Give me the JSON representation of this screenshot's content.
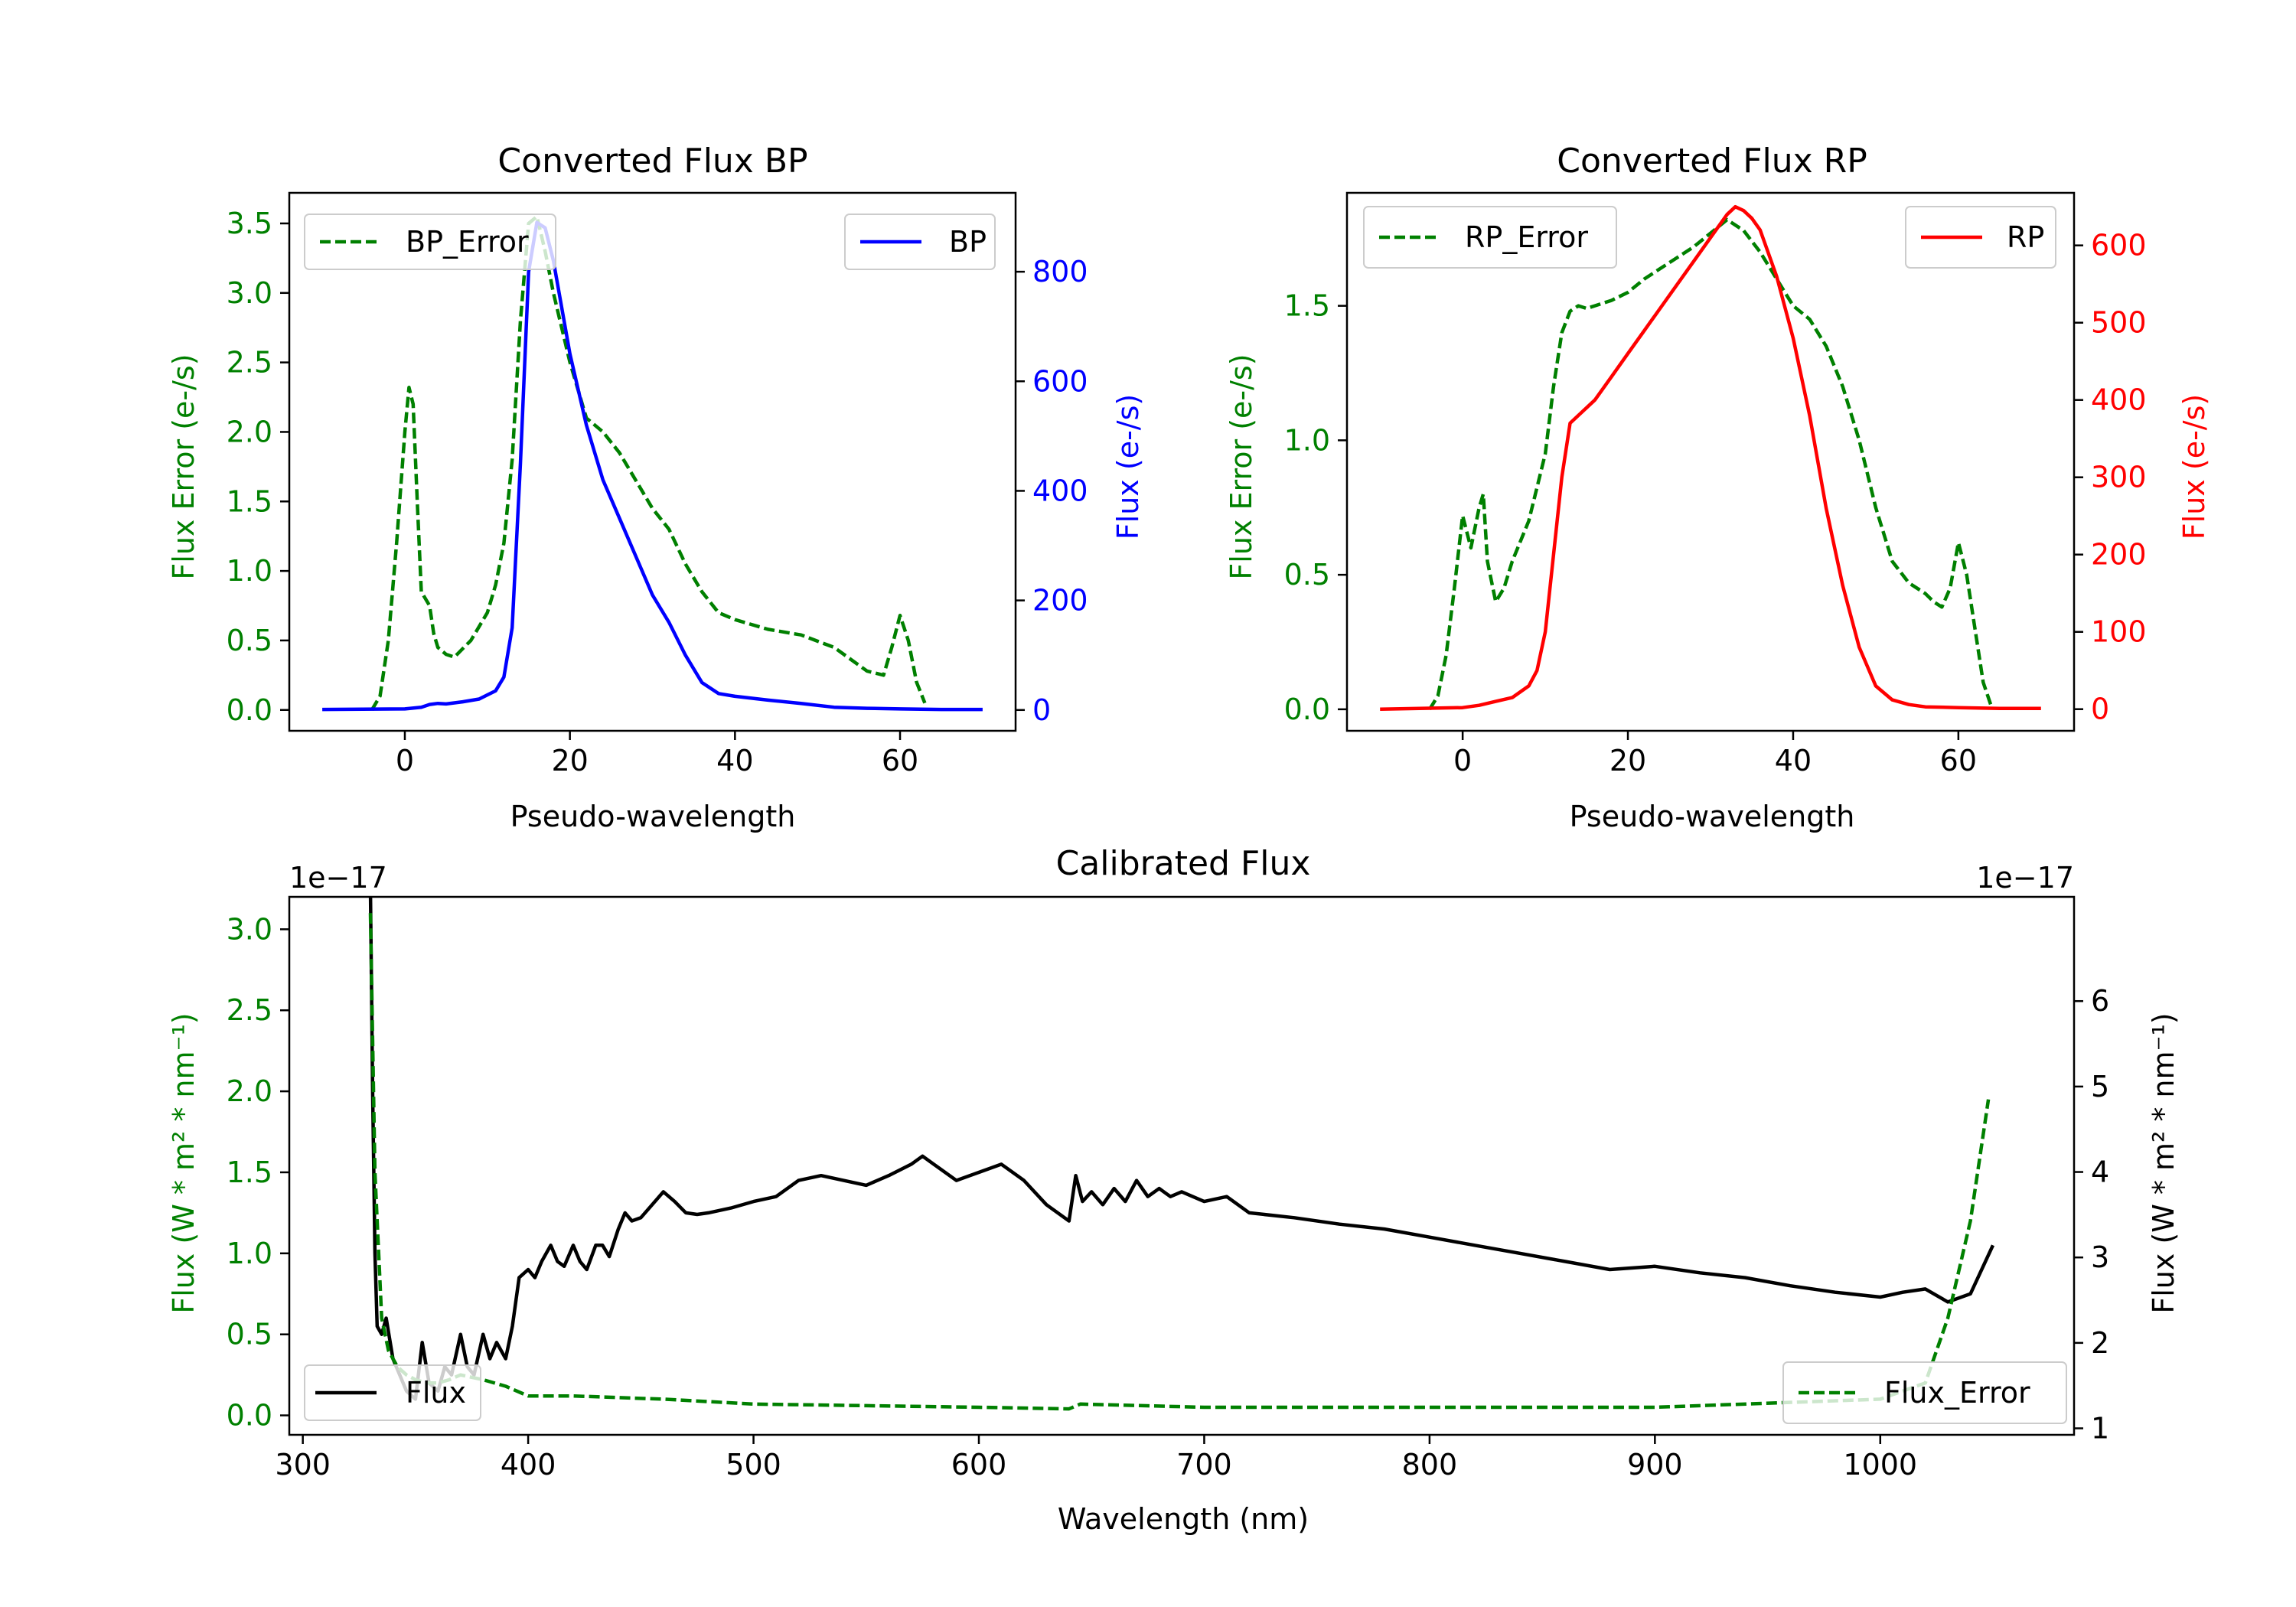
{
  "colors": {
    "green": "#008000",
    "blue": "#0000ff",
    "red": "#ff0000",
    "black": "#000000"
  },
  "chart_data": [
    {
      "id": "bp",
      "type": "line",
      "title": "Converted Flux BP",
      "xlabel": "Pseudo-wavelength",
      "ylabel_left": "Flux Error (e-/s)",
      "ylabel_right": "Flux (e-/s)",
      "xlim": [
        -14,
        74
      ],
      "ylim_left": [
        -0.15,
        3.72
      ],
      "ylim_right": [
        -38,
        944
      ],
      "xticks": [
        0,
        20,
        40,
        60
      ],
      "yticks_left": [
        0.0,
        0.5,
        1.0,
        1.5,
        2.0,
        2.5,
        3.0,
        3.5
      ],
      "yticks_right": [
        0,
        200,
        400,
        600,
        800
      ],
      "legend_left": {
        "label": "BP_Error",
        "position": "upper-left"
      },
      "legend_right": {
        "label": "BP",
        "position": "upper-right"
      },
      "series": [
        {
          "name": "BP_Error",
          "axis": "left",
          "color": "green",
          "style": "dashed",
          "x": [
            -4,
            -3,
            -2,
            -1,
            0,
            0.5,
            1,
            1.5,
            2,
            2.5,
            3,
            3.5,
            4,
            5,
            6,
            8,
            10,
            11,
            12,
            13,
            14,
            15,
            16,
            17,
            18,
            19,
            20,
            22,
            24,
            26,
            28,
            30,
            32,
            34,
            36,
            38,
            40,
            44,
            48,
            52,
            56,
            58,
            59,
            60,
            61,
            62,
            63
          ],
          "y": [
            0.0,
            0.1,
            0.5,
            1.2,
            2.0,
            2.32,
            2.2,
            1.5,
            0.85,
            0.8,
            0.75,
            0.55,
            0.45,
            0.4,
            0.38,
            0.5,
            0.7,
            0.9,
            1.2,
            1.8,
            2.8,
            3.5,
            3.55,
            3.3,
            3.0,
            2.75,
            2.5,
            2.1,
            2.0,
            1.85,
            1.65,
            1.45,
            1.3,
            1.05,
            0.85,
            0.7,
            0.65,
            0.58,
            0.54,
            0.45,
            0.28,
            0.25,
            0.45,
            0.68,
            0.5,
            0.2,
            0.05
          ]
        },
        {
          "name": "BP",
          "axis": "right",
          "color": "blue",
          "style": "solid",
          "x": [
            -10,
            0,
            2,
            3,
            4,
            5,
            7,
            9,
            11,
            12,
            13,
            14,
            15,
            16,
            17,
            18,
            20,
            22,
            24,
            26,
            28,
            30,
            32,
            34,
            36,
            38,
            40,
            44,
            48,
            52,
            56,
            60,
            65,
            70
          ],
          "y": [
            1,
            2,
            5,
            10,
            12,
            11,
            15,
            20,
            35,
            60,
            150,
            450,
            800,
            890,
            880,
            820,
            650,
            520,
            420,
            350,
            280,
            210,
            160,
            100,
            50,
            30,
            25,
            18,
            12,
            5,
            3,
            2,
            1,
            1
          ]
        }
      ]
    },
    {
      "id": "rp",
      "type": "line",
      "title": "Converted Flux RP",
      "xlabel": "Pseudo-wavelength",
      "ylabel_left": "Flux Error (e-/s)",
      "ylabel_right": "Flux (e-/s)",
      "xlim": [
        -14,
        74
      ],
      "ylim_left": [
        -0.08,
        1.92
      ],
      "ylim_right": [
        -28,
        668
      ],
      "xticks": [
        0,
        20,
        40,
        60
      ],
      "yticks_left": [
        0.0,
        0.5,
        1.0,
        1.5
      ],
      "yticks_right": [
        0,
        100,
        200,
        300,
        400,
        500,
        600
      ],
      "legend_left": {
        "label": "RP_Error",
        "position": "upper-left"
      },
      "legend_right": {
        "label": "RP",
        "position": "upper-right"
      },
      "series": [
        {
          "name": "RP_Error",
          "axis": "left",
          "color": "green",
          "style": "dashed",
          "x": [
            -4,
            -3,
            -2,
            -1,
            0,
            1,
            2,
            2.5,
            3,
            4,
            5,
            6,
            8,
            10,
            11,
            12,
            13,
            14,
            15,
            16,
            18,
            20,
            22,
            24,
            26,
            28,
            30,
            32,
            34,
            36,
            38,
            40,
            42,
            44,
            46,
            48,
            50,
            52,
            54,
            55,
            56,
            57,
            58,
            59,
            60,
            61,
            62,
            63,
            64
          ],
          "y": [
            0.0,
            0.05,
            0.2,
            0.45,
            0.72,
            0.6,
            0.75,
            0.8,
            0.55,
            0.4,
            0.45,
            0.55,
            0.7,
            0.95,
            1.2,
            1.4,
            1.48,
            1.5,
            1.49,
            1.5,
            1.52,
            1.55,
            1.6,
            1.64,
            1.68,
            1.72,
            1.77,
            1.82,
            1.78,
            1.7,
            1.6,
            1.5,
            1.45,
            1.35,
            1.2,
            1.0,
            0.75,
            0.55,
            0.47,
            0.45,
            0.43,
            0.4,
            0.38,
            0.45,
            0.62,
            0.5,
            0.3,
            0.1,
            0.01
          ]
        },
        {
          "name": "RP",
          "axis": "right",
          "color": "red",
          "style": "solid",
          "x": [
            -10,
            0,
            2,
            4,
            6,
            8,
            9,
            10,
            11,
            12,
            13,
            14,
            16,
            18,
            20,
            22,
            24,
            26,
            28,
            30,
            31,
            32,
            33,
            34,
            35,
            36,
            38,
            40,
            42,
            44,
            46,
            48,
            50,
            52,
            54,
            56,
            60,
            65,
            70
          ],
          "y": [
            0,
            2,
            5,
            10,
            15,
            30,
            50,
            100,
            200,
            300,
            370,
            380,
            400,
            430,
            460,
            490,
            520,
            550,
            580,
            610,
            625,
            640,
            650,
            645,
            635,
            620,
            560,
            480,
            380,
            260,
            160,
            80,
            30,
            12,
            6,
            3,
            2,
            1,
            1
          ]
        }
      ]
    },
    {
      "id": "cal",
      "type": "line",
      "title": "Calibrated Flux",
      "xlabel": "Wavelength (nm)",
      "ylabel_left": "Flux (W * m² * nm⁻¹)",
      "ylabel_right": "Flux (W * m² * nm⁻¹)",
      "offset_left": "1e−17",
      "offset_right": "1e−17",
      "xlim": [
        294,
        1086
      ],
      "ylim_left": [
        -0.12,
        3.2
      ],
      "ylim_right": [
        0.924,
        7.22
      ],
      "xticks": [
        300,
        400,
        500,
        600,
        700,
        800,
        900,
        1000
      ],
      "yticks_left": [
        0.0,
        0.5,
        1.0,
        1.5,
        2.0,
        2.5,
        3.0
      ],
      "yticks_right": [
        1,
        2,
        3,
        4,
        5,
        6
      ],
      "legend_left": {
        "label": "Flux",
        "position": "lower-left"
      },
      "legend_right": {
        "label": "Flux_Error",
        "position": "lower-right"
      },
      "series": [
        {
          "name": "Flux",
          "axis": "left",
          "color": "black",
          "style": "solid",
          "x": [
            330,
            331,
            332,
            333,
            335,
            337,
            340,
            343,
            346,
            350,
            353,
            356,
            360,
            363,
            366,
            370,
            373,
            376,
            380,
            383,
            386,
            390,
            393,
            396,
            400,
            403,
            406,
            410,
            413,
            416,
            420,
            423,
            426,
            430,
            433,
            436,
            440,
            443,
            446,
            450,
            455,
            460,
            465,
            470,
            475,
            480,
            490,
            500,
            510,
            520,
            530,
            540,
            550,
            560,
            570,
            575,
            580,
            590,
            600,
            610,
            620,
            630,
            640,
            643,
            646,
            650,
            655,
            660,
            665,
            670,
            675,
            680,
            685,
            690,
            700,
            710,
            720,
            740,
            760,
            780,
            800,
            820,
            840,
            860,
            880,
            900,
            920,
            940,
            960,
            980,
            1000,
            1010,
            1020,
            1030,
            1040,
            1050
          ],
          "y": [
            3.25,
            2.0,
            1.0,
            0.55,
            0.5,
            0.6,
            0.35,
            0.25,
            0.15,
            0.1,
            0.45,
            0.2,
            0.15,
            0.3,
            0.25,
            0.5,
            0.3,
            0.25,
            0.5,
            0.35,
            0.45,
            0.35,
            0.55,
            0.85,
            0.9,
            0.85,
            0.95,
            1.05,
            0.95,
            0.92,
            1.05,
            0.95,
            0.9,
            1.05,
            1.05,
            0.98,
            1.15,
            1.25,
            1.2,
            1.22,
            1.3,
            1.38,
            1.32,
            1.25,
            1.24,
            1.25,
            1.28,
            1.32,
            1.35,
            1.45,
            1.48,
            1.45,
            1.42,
            1.48,
            1.55,
            1.6,
            1.55,
            1.45,
            1.5,
            1.55,
            1.45,
            1.3,
            1.2,
            1.48,
            1.32,
            1.38,
            1.3,
            1.4,
            1.32,
            1.45,
            1.35,
            1.4,
            1.35,
            1.38,
            1.32,
            1.35,
            1.25,
            1.22,
            1.18,
            1.15,
            1.1,
            1.05,
            1.0,
            0.95,
            0.9,
            0.92,
            0.88,
            0.85,
            0.8,
            0.76,
            0.73,
            0.76,
            0.78,
            0.7,
            0.75,
            1.05
          ]
        },
        {
          "name": "Flux_Error",
          "axis": "left",
          "color": "green",
          "style": "dashed",
          "x": [
            330,
            332,
            335,
            338,
            342,
            346,
            350,
            355,
            360,
            365,
            370,
            380,
            390,
            400,
            420,
            440,
            460,
            500,
            550,
            600,
            640,
            645,
            700,
            800,
            900,
            1000,
            1020,
            1030,
            1040,
            1048
          ],
          "y": [
            3.1,
            1.5,
            0.6,
            0.4,
            0.3,
            0.25,
            0.22,
            0.2,
            0.2,
            0.22,
            0.25,
            0.22,
            0.18,
            0.12,
            0.12,
            0.11,
            0.1,
            0.07,
            0.06,
            0.05,
            0.04,
            0.07,
            0.05,
            0.05,
            0.05,
            0.1,
            0.2,
            0.6,
            1.2,
            1.95
          ]
        }
      ]
    }
  ]
}
